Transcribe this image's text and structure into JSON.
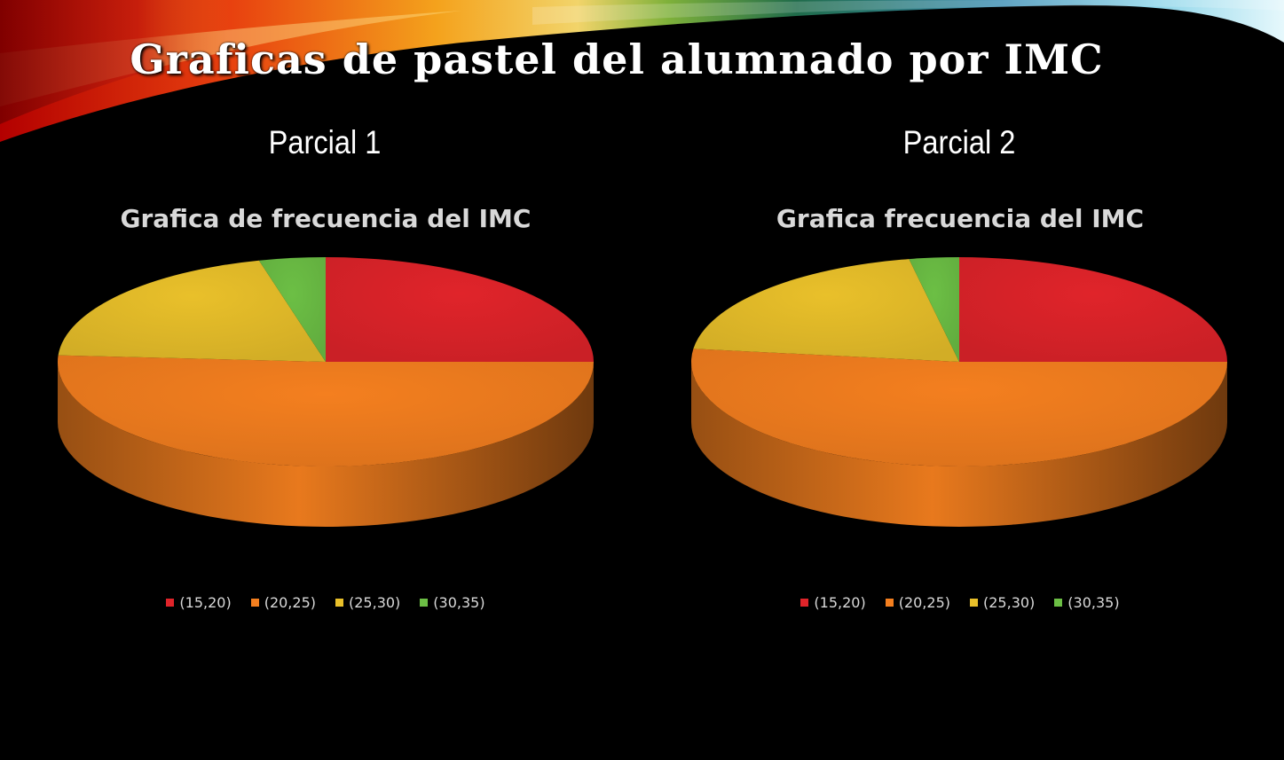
{
  "slide": {
    "title": "Graficas de pastel del alumnado por IMC"
  },
  "colors": {
    "background": "#000000",
    "text": "#ffffff",
    "chart_text": "#d9d9d9"
  },
  "chart_data": [
    {
      "type": "pie",
      "panel_heading": "Parcial 1",
      "title": "Grafica de frecuencia del IMC",
      "categories": [
        "(15,20)",
        "(20,25)",
        "(25,30)",
        "(30,35)"
      ],
      "values": [
        25,
        51,
        20,
        4
      ],
      "colors": [
        "#e0242a",
        "#f47f1f",
        "#e9c02a",
        "#6cbf45"
      ],
      "legend": "bottom",
      "style": "3d"
    },
    {
      "type": "pie",
      "panel_heading": "Parcial 2",
      "title": "Grafica frecuencia del IMC",
      "categories": [
        "(15,20)",
        "(20,25)",
        "(25,30)",
        "(30,35)"
      ],
      "values": [
        25,
        52,
        20,
        3
      ],
      "colors": [
        "#e0242a",
        "#f47f1f",
        "#e9c02a",
        "#6cbf45"
      ],
      "legend": "bottom",
      "style": "3d"
    }
  ]
}
